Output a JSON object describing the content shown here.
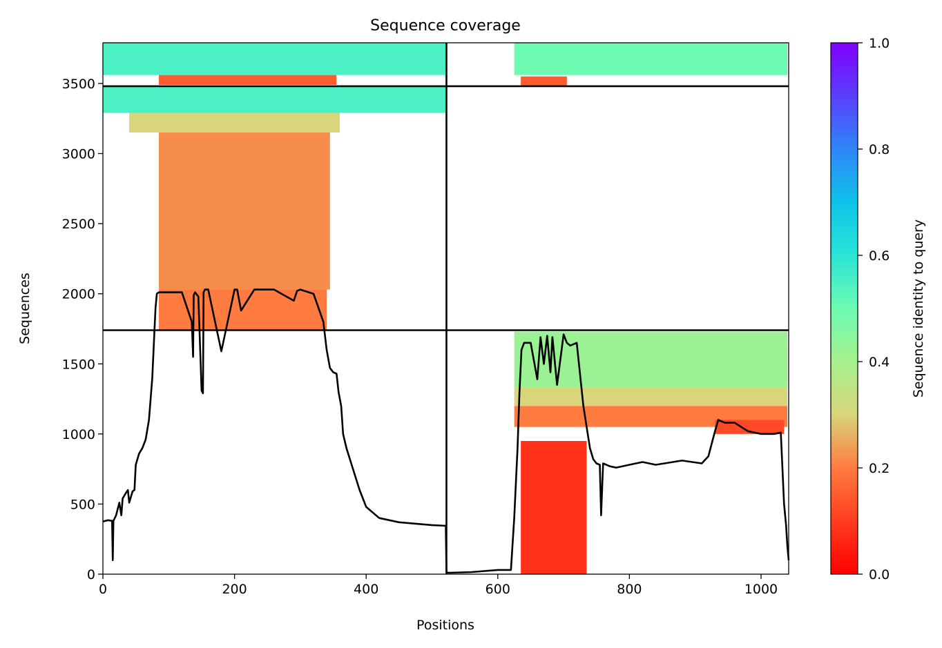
{
  "chart_data": {
    "type": "heatmap",
    "title": "Sequence coverage",
    "xlabel": "Positions",
    "ylabel": "Sequences",
    "xlim": [
      0,
      1042
    ],
    "ylim": [
      0,
      3790
    ],
    "x_ticks": [
      0,
      200,
      400,
      600,
      800,
      1000
    ],
    "y_ticks": [
      0,
      500,
      1000,
      1500,
      2000,
      2500,
      3000,
      3500
    ],
    "grid": false,
    "chain_boundary_x": [
      522
    ],
    "chain_boundary_y": [
      1740,
      3480
    ],
    "coverage_blocks": [
      {
        "x": [
          85,
          340
        ],
        "y": [
          1740,
          2030
        ],
        "identity": 0.2
      },
      {
        "x": [
          85,
          345
        ],
        "y": [
          2030,
          3150
        ],
        "identity": 0.22
      },
      {
        "x": [
          40,
          360
        ],
        "y": [
          3150,
          3290
        ],
        "identity": 0.3
      },
      {
        "x": [
          0,
          522
        ],
        "y": [
          3290,
          3480
        ],
        "identity": 0.55
      },
      {
        "x": [
          0,
          522
        ],
        "y": [
          3560,
          3790
        ],
        "identity": 0.55
      },
      {
        "x": [
          85,
          355
        ],
        "y": [
          3490,
          3560
        ],
        "identity": 0.15
      },
      {
        "x": [
          625,
          1040
        ],
        "y": [
          3560,
          3790
        ],
        "identity": 0.5
      },
      {
        "x": [
          635,
          705
        ],
        "y": [
          3480,
          3550
        ],
        "identity": 0.15
      },
      {
        "x": [
          635,
          735
        ],
        "y": [
          0,
          950
        ],
        "identity": 0.08
      },
      {
        "x": [
          625,
          1040
        ],
        "y": [
          1050,
          1200
        ],
        "identity": 0.2
      },
      {
        "x": [
          625,
          1040
        ],
        "y": [
          1200,
          1330
        ],
        "identity": 0.3
      },
      {
        "x": [
          625,
          1040
        ],
        "y": [
          1330,
          1730
        ],
        "identity": 0.42
      },
      {
        "x": [
          930,
          1035
        ],
        "y": [
          1000,
          1100
        ],
        "identity": 0.12
      }
    ],
    "coverage_line": {
      "x": [
        0,
        8,
        14,
        15,
        16,
        20,
        25,
        28,
        30,
        35,
        38,
        40,
        45,
        48,
        50,
        55,
        60,
        65,
        70,
        75,
        78,
        80,
        82,
        85,
        88,
        100,
        120,
        135,
        137,
        138,
        140,
        145,
        150,
        152,
        153,
        155,
        160,
        180,
        200,
        202,
        204,
        210,
        230,
        237,
        240,
        260,
        290,
        295,
        300,
        320,
        335,
        340,
        345,
        350,
        355,
        358,
        362,
        365,
        370,
        380,
        390,
        400,
        420,
        450,
        500,
        521,
        522,
        525,
        560,
        600,
        620,
        625,
        630,
        633,
        636,
        640,
        650,
        660,
        665,
        670,
        675,
        680,
        683,
        690,
        700,
        705,
        710,
        720,
        730,
        740,
        745,
        750,
        755,
        757,
        760,
        770,
        780,
        800,
        820,
        840,
        880,
        910,
        920,
        930,
        935,
        945,
        960,
        980,
        1000,
        1020,
        1030,
        1035,
        1038,
        1040,
        1042
      ],
      "y": [
        375,
        385,
        380,
        100,
        380,
        420,
        510,
        420,
        540,
        580,
        600,
        510,
        590,
        600,
        780,
        860,
        900,
        960,
        1100,
        1400,
        1700,
        1900,
        2000,
        2010,
        2010,
        2010,
        2010,
        1800,
        1550,
        1990,
        2010,
        1980,
        1310,
        1290,
        2010,
        2030,
        2030,
        1590,
        2030,
        2030,
        2030,
        1880,
        2030,
        2030,
        2030,
        2030,
        1950,
        2020,
        2030,
        2000,
        1800,
        1600,
        1470,
        1440,
        1430,
        1300,
        1200,
        1000,
        900,
        750,
        600,
        480,
        400,
        370,
        350,
        345,
        15,
        10,
        15,
        30,
        30,
        400,
        900,
        1300,
        1600,
        1650,
        1650,
        1390,
        1690,
        1500,
        1700,
        1440,
        1690,
        1350,
        1710,
        1650,
        1630,
        1650,
        1200,
        900,
        820,
        790,
        780,
        420,
        790,
        770,
        760,
        780,
        800,
        780,
        810,
        790,
        840,
        1020,
        1100,
        1080,
        1080,
        1020,
        1000,
        1000,
        1010,
        500,
        350,
        200,
        100
      ]
    },
    "colorbar": {
      "label": "Sequence identity to query",
      "min": 0.0,
      "max": 1.0,
      "ticks": [
        "0.0",
        "0.2",
        "0.4",
        "0.6",
        "0.8",
        "1.0"
      ],
      "colormap": "rainbow_r"
    },
    "line_color": "#000000"
  }
}
